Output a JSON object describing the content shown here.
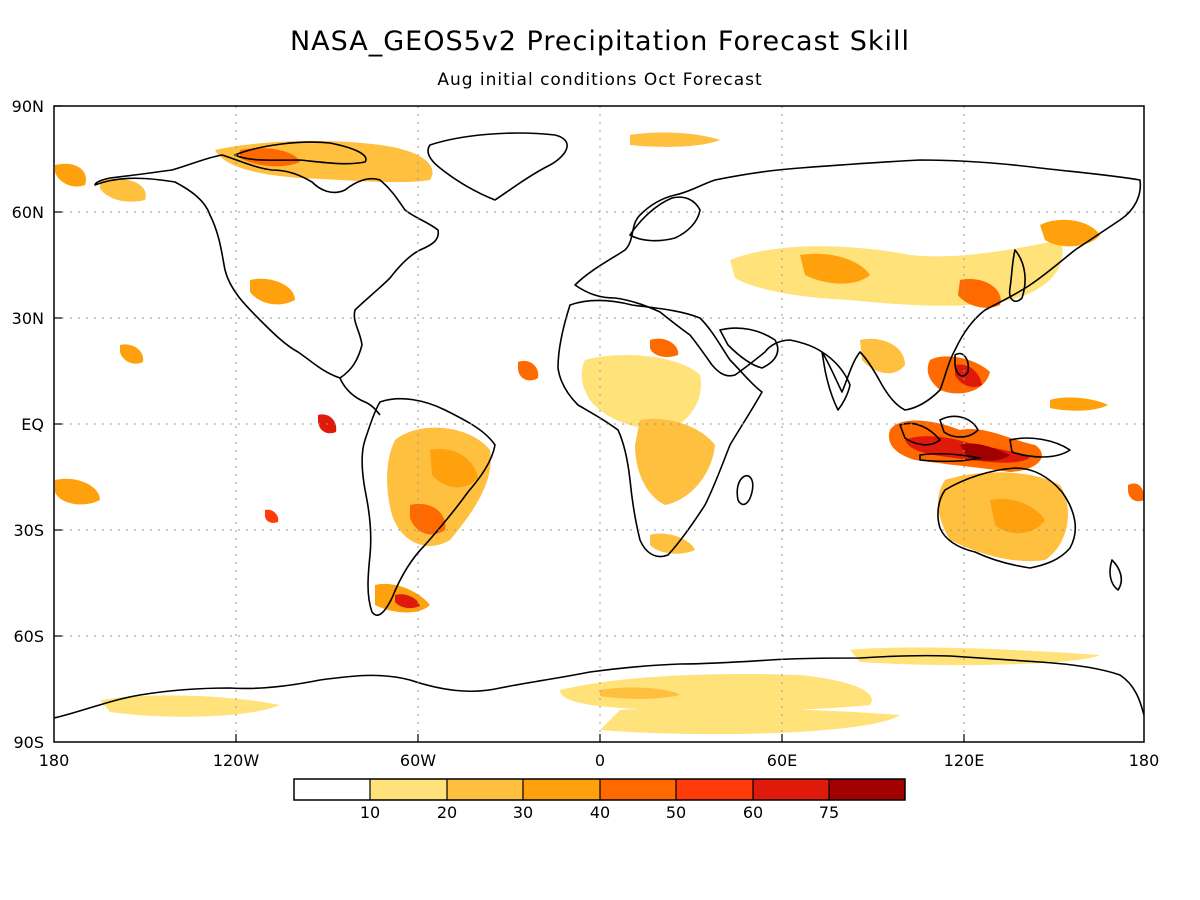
{
  "title": "NASA_GEOS5v2 Precipitation Forecast Skill",
  "subtitle": "Aug initial conditions  Oct Forecast",
  "map": {
    "lat_labels": [
      "90N",
      "60N",
      "30N",
      "EQ",
      "30S",
      "60S",
      "90S"
    ],
    "lon_labels": [
      "180",
      "120W",
      "60W",
      "0",
      "60E",
      "120E",
      "180"
    ],
    "grid": "dotted"
  },
  "legend": {
    "tick_labels": [
      "10",
      "20",
      "30",
      "40",
      "50",
      "60",
      "75"
    ],
    "colors": [
      "#ffffff",
      "#ffe27a",
      "#ffbf3f",
      "#ffa10d",
      "#ff6a00",
      "#ff3b0a",
      "#e01a0a",
      "#a00000"
    ]
  },
  "colors": {
    "land_outline": "#000000",
    "shading": [
      "#ffe27a",
      "#ffbf3f",
      "#ffa10d",
      "#ff6a00",
      "#ff3b0a",
      "#e01a0a",
      "#a00000"
    ]
  }
}
